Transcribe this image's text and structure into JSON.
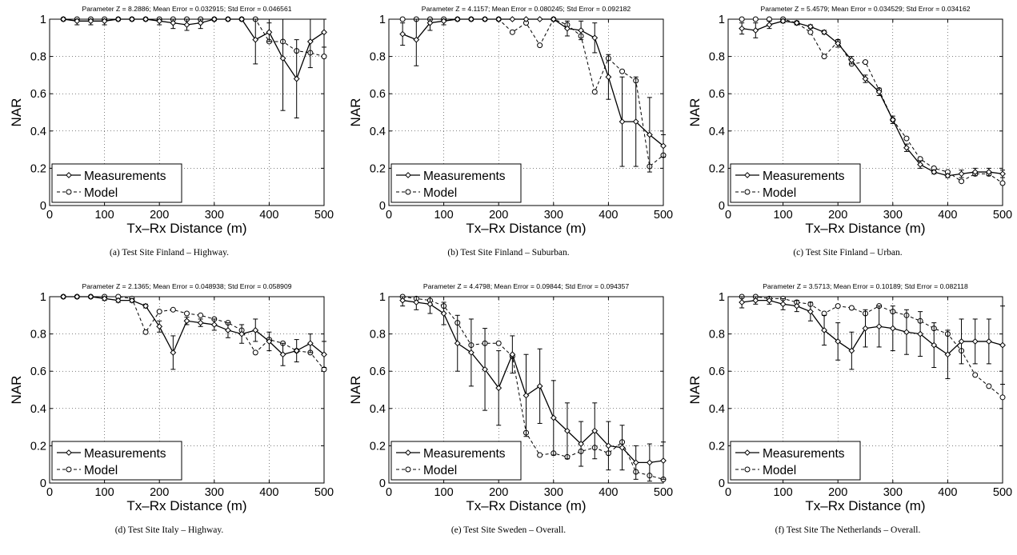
{
  "chart_data": [
    {
      "type": "line",
      "title": "Parameter Z = 8.2886; Mean Error = 0.032915; Std Error = 0.046561",
      "caption": "(a)  Test Site Finland – Highway.",
      "xlabel": "Tx–Rx Distance (m)",
      "ylabel": "NAR",
      "xlim": [
        0,
        500
      ],
      "ylim": [
        0,
        1
      ],
      "xticks": [
        "0",
        "100",
        "200",
        "300",
        "400",
        "500"
      ],
      "yticks": [
        "0",
        "0.2",
        "0.4",
        "0.6",
        "0.8",
        "1"
      ],
      "grid": true,
      "legend": "bottom-left",
      "x": [
        25,
        50,
        75,
        100,
        125,
        150,
        175,
        200,
        225,
        250,
        275,
        300,
        325,
        350,
        375,
        400,
        425,
        450,
        475,
        500
      ],
      "series": [
        {
          "name": "Measurements",
          "values": [
            1.0,
            0.99,
            0.99,
            0.99,
            1.0,
            1.0,
            1.0,
            0.99,
            0.98,
            0.97,
            0.98,
            1.0,
            1.0,
            1.0,
            0.89,
            0.93,
            0.79,
            0.68,
            0.88,
            0.93
          ],
          "err": [
            0,
            0.02,
            0.02,
            0.02,
            0,
            0,
            0,
            0.02,
            0.03,
            0.03,
            0.03,
            0,
            0,
            0,
            0.13,
            0.05,
            0.28,
            0.21,
            0.14,
            0.08
          ]
        },
        {
          "name": "Model",
          "values": [
            1.0,
            1.0,
            1.0,
            1.0,
            1.0,
            1.0,
            1.0,
            1.0,
            1.0,
            1.0,
            1.0,
            1.0,
            1.0,
            1.0,
            1.0,
            0.88,
            0.88,
            0.83,
            0.82,
            0.8
          ]
        }
      ]
    },
    {
      "type": "line",
      "title": "Parameter Z = 4.1157; Mean Error = 0.080245; Std Error = 0.092182",
      "caption": "(b)  Test Site Finland – Suburban.",
      "xlabel": "Tx–Rx Distance (m)",
      "ylabel": "NAR",
      "xlim": [
        0,
        500
      ],
      "ylim": [
        0,
        1
      ],
      "xticks": [
        "0",
        "100",
        "200",
        "300",
        "400",
        "500"
      ],
      "yticks": [
        "0",
        "0.2",
        "0.4",
        "0.6",
        "0.8",
        "1"
      ],
      "grid": true,
      "legend": "bottom-left",
      "x": [
        25,
        50,
        75,
        100,
        125,
        150,
        175,
        200,
        225,
        250,
        275,
        300,
        325,
        350,
        375,
        400,
        425,
        450,
        475,
        500
      ],
      "series": [
        {
          "name": "Measurements",
          "values": [
            0.92,
            0.89,
            0.98,
            0.99,
            1.0,
            1.0,
            1.0,
            1.0,
            1.0,
            1.0,
            1.0,
            1.0,
            0.95,
            0.94,
            0.9,
            0.69,
            0.45,
            0.45,
            0.38,
            0.32
          ],
          "err": [
            0.06,
            0.14,
            0.04,
            0.02,
            0,
            0,
            0,
            0,
            0,
            0,
            0,
            0,
            0.04,
            0.05,
            0.08,
            0.12,
            0.24,
            0.24,
            0.2,
            0.06
          ]
        },
        {
          "name": "Model",
          "values": [
            1.0,
            1.0,
            1.0,
            1.0,
            1.0,
            1.0,
            1.0,
            1.0,
            0.93,
            0.98,
            0.86,
            1.0,
            0.97,
            0.91,
            0.61,
            0.79,
            0.72,
            0.67,
            0.21,
            0.27
          ]
        }
      ]
    },
    {
      "type": "line",
      "title": "Parameter Z = 5.4579; Mean Error = 0.034529; Std Error = 0.034162",
      "caption": "(c)  Test Site Finland – Urban.",
      "xlabel": "Tx–Rx Distance (m)",
      "ylabel": "NAR",
      "xlim": [
        0,
        500
      ],
      "ylim": [
        0,
        1
      ],
      "xticks": [
        "0",
        "100",
        "200",
        "300",
        "400",
        "500"
      ],
      "yticks": [
        "0",
        "0.2",
        "0.4",
        "0.6",
        "0.8",
        "1"
      ],
      "grid": true,
      "legend": "bottom-left",
      "x": [
        25,
        50,
        75,
        100,
        125,
        150,
        175,
        200,
        225,
        250,
        275,
        300,
        325,
        350,
        375,
        400,
        425,
        450,
        475,
        500
      ],
      "series": [
        {
          "name": "Measurements",
          "values": [
            0.95,
            0.94,
            0.97,
            0.99,
            0.98,
            0.96,
            0.93,
            0.87,
            0.78,
            0.68,
            0.61,
            0.46,
            0.31,
            0.22,
            0.18,
            0.16,
            0.17,
            0.18,
            0.18,
            0.17
          ],
          "err": [
            0.03,
            0.04,
            0.02,
            0.01,
            0.01,
            0.01,
            0.01,
            0.02,
            0.02,
            0.02,
            0.02,
            0.02,
            0.02,
            0.02,
            0.01,
            0.01,
            0.02,
            0.02,
            0.02,
            0.02
          ]
        },
        {
          "name": "Model",
          "values": [
            1.0,
            1.0,
            1.0,
            1.0,
            0.98,
            0.93,
            0.8,
            0.88,
            0.76,
            0.77,
            0.62,
            0.46,
            0.36,
            0.25,
            0.2,
            0.18,
            0.13,
            0.17,
            0.17,
            0.12
          ]
        }
      ]
    },
    {
      "type": "line",
      "title": "Parameter Z = 2.1365; Mean Error = 0.048938; Std Error = 0.058909",
      "caption": "(d)  Test Site Italy – Highway.",
      "xlabel": "Tx–Rx Distance (m)",
      "ylabel": "NAR",
      "xlim": [
        0,
        500
      ],
      "ylim": [
        0,
        1
      ],
      "xticks": [
        "0",
        "100",
        "200",
        "300",
        "400",
        "500"
      ],
      "yticks": [
        "0",
        "0.2",
        "0.4",
        "0.6",
        "0.8",
        "1"
      ],
      "grid": true,
      "legend": "bottom-left",
      "x": [
        25,
        50,
        75,
        100,
        125,
        150,
        175,
        200,
        225,
        250,
        275,
        300,
        325,
        350,
        375,
        400,
        425,
        450,
        475,
        500
      ],
      "series": [
        {
          "name": "Measurements",
          "values": [
            1.0,
            1.0,
            1.0,
            0.99,
            0.98,
            0.98,
            0.95,
            0.84,
            0.7,
            0.87,
            0.86,
            0.85,
            0.82,
            0.8,
            0.82,
            0.76,
            0.69,
            0.71,
            0.75,
            0.69
          ],
          "err": [
            0,
            0,
            0,
            0.01,
            0.01,
            0.01,
            0.01,
            0.03,
            0.09,
            0.02,
            0.02,
            0.03,
            0.04,
            0.05,
            0.06,
            0.05,
            0.06,
            0.06,
            0.05,
            0.07
          ]
        },
        {
          "name": "Model",
          "values": [
            1.0,
            1.0,
            1.0,
            1.0,
            1.0,
            0.99,
            0.81,
            0.92,
            0.93,
            0.91,
            0.9,
            0.88,
            0.86,
            0.82,
            0.7,
            0.77,
            0.75,
            0.71,
            0.7,
            0.61
          ]
        }
      ]
    },
    {
      "type": "line",
      "title": "Parameter Z = 4.4798; Mean Error = 0.09844; Std Error = 0.094357",
      "caption": "(e)  Test Site Sweden – Overall.",
      "xlabel": "Tx–Rx Distance (m)",
      "ylabel": "NAR",
      "xlim": [
        0,
        500
      ],
      "ylim": [
        0,
        1
      ],
      "xticks": [
        "0",
        "100",
        "200",
        "300",
        "400",
        "500"
      ],
      "yticks": [
        "0",
        "0.2",
        "0.4",
        "0.6",
        "0.8",
        "1"
      ],
      "grid": true,
      "legend": "bottom-left",
      "x": [
        25,
        50,
        75,
        100,
        125,
        150,
        175,
        200,
        225,
        250,
        275,
        300,
        325,
        350,
        375,
        400,
        425,
        450,
        475,
        500
      ],
      "series": [
        {
          "name": "Measurements",
          "values": [
            0.98,
            0.97,
            0.96,
            0.91,
            0.75,
            0.7,
            0.61,
            0.51,
            0.69,
            0.47,
            0.52,
            0.35,
            0.28,
            0.21,
            0.28,
            0.2,
            0.19,
            0.11,
            0.11,
            0.12
          ],
          "err": [
            0.03,
            0.04,
            0.05,
            0.06,
            0.15,
            0.18,
            0.22,
            0.2,
            0.1,
            0.22,
            0.2,
            0.2,
            0.15,
            0.12,
            0.15,
            0.13,
            0.12,
            0.09,
            0.1,
            0.1
          ]
        },
        {
          "name": "Model",
          "values": [
            1.0,
            0.99,
            0.98,
            0.95,
            0.86,
            0.74,
            0.75,
            0.75,
            0.68,
            0.27,
            0.15,
            0.16,
            0.14,
            0.17,
            0.19,
            0.16,
            0.22,
            0.06,
            0.04,
            0.02
          ]
        }
      ]
    },
    {
      "type": "line",
      "title": "Parameter Z = 3.5713; Mean Error = 0.10189; Std Error = 0.082118",
      "caption": "(f)  Test Site The Netherlands – Overall.",
      "xlabel": "Tx–Rx Distance (m)",
      "ylabel": "NAR",
      "xlim": [
        0,
        500
      ],
      "ylim": [
        0,
        1
      ],
      "xticks": [
        "0",
        "100",
        "200",
        "300",
        "400",
        "500"
      ],
      "yticks": [
        "0",
        "0.2",
        "0.4",
        "0.6",
        "0.8",
        "1"
      ],
      "grid": true,
      "legend": "bottom-left",
      "x": [
        25,
        50,
        75,
        100,
        125,
        150,
        175,
        200,
        225,
        250,
        275,
        300,
        325,
        350,
        375,
        400,
        425,
        450,
        475,
        500
      ],
      "series": [
        {
          "name": "Measurements",
          "values": [
            0.97,
            0.98,
            0.98,
            0.96,
            0.95,
            0.92,
            0.82,
            0.76,
            0.71,
            0.83,
            0.84,
            0.83,
            0.81,
            0.8,
            0.74,
            0.69,
            0.76,
            0.76,
            0.76,
            0.74
          ],
          "err": [
            0.03,
            0.02,
            0.02,
            0.03,
            0.03,
            0.05,
            0.08,
            0.1,
            0.1,
            0.1,
            0.11,
            0.12,
            0.12,
            0.12,
            0.12,
            0.13,
            0.12,
            0.12,
            0.12,
            0.21
          ]
        },
        {
          "name": "Model",
          "values": [
            1.0,
            1.0,
            0.99,
            0.99,
            0.97,
            0.96,
            0.91,
            0.95,
            0.94,
            0.91,
            0.95,
            0.92,
            0.9,
            0.87,
            0.83,
            0.8,
            0.71,
            0.58,
            0.52,
            0.46
          ]
        }
      ]
    }
  ]
}
